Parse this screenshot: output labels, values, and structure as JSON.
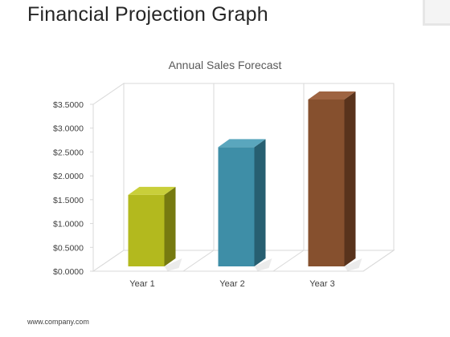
{
  "slide": {
    "title": "Financial Projection Graph",
    "footer": "www.company.com"
  },
  "chart_data": {
    "type": "bar",
    "title": "Annual Sales Forecast",
    "categories": [
      "Year 1",
      "Year 2",
      "Year 3"
    ],
    "values": [
      1.5,
      2.5,
      3.5
    ],
    "ylim": [
      0,
      3.5
    ],
    "yticks": [
      "$0.0000",
      "$0.5000",
      "$1.0000",
      "$1.5000",
      "$2.0000",
      "$2.5000",
      "$3.0000",
      "$3.5000"
    ],
    "xlabel": "",
    "ylabel": "",
    "grid": true,
    "three_d": true,
    "legend": "none",
    "bar_colors": [
      {
        "front": "#b3b91e",
        "side": "#767a10",
        "top": "#c9cf3a"
      },
      {
        "front": "#3e8ea7",
        "side": "#275f71",
        "top": "#5aa6bd"
      },
      {
        "front": "#86502e",
        "side": "#59331c",
        "top": "#9e6442"
      }
    ]
  }
}
